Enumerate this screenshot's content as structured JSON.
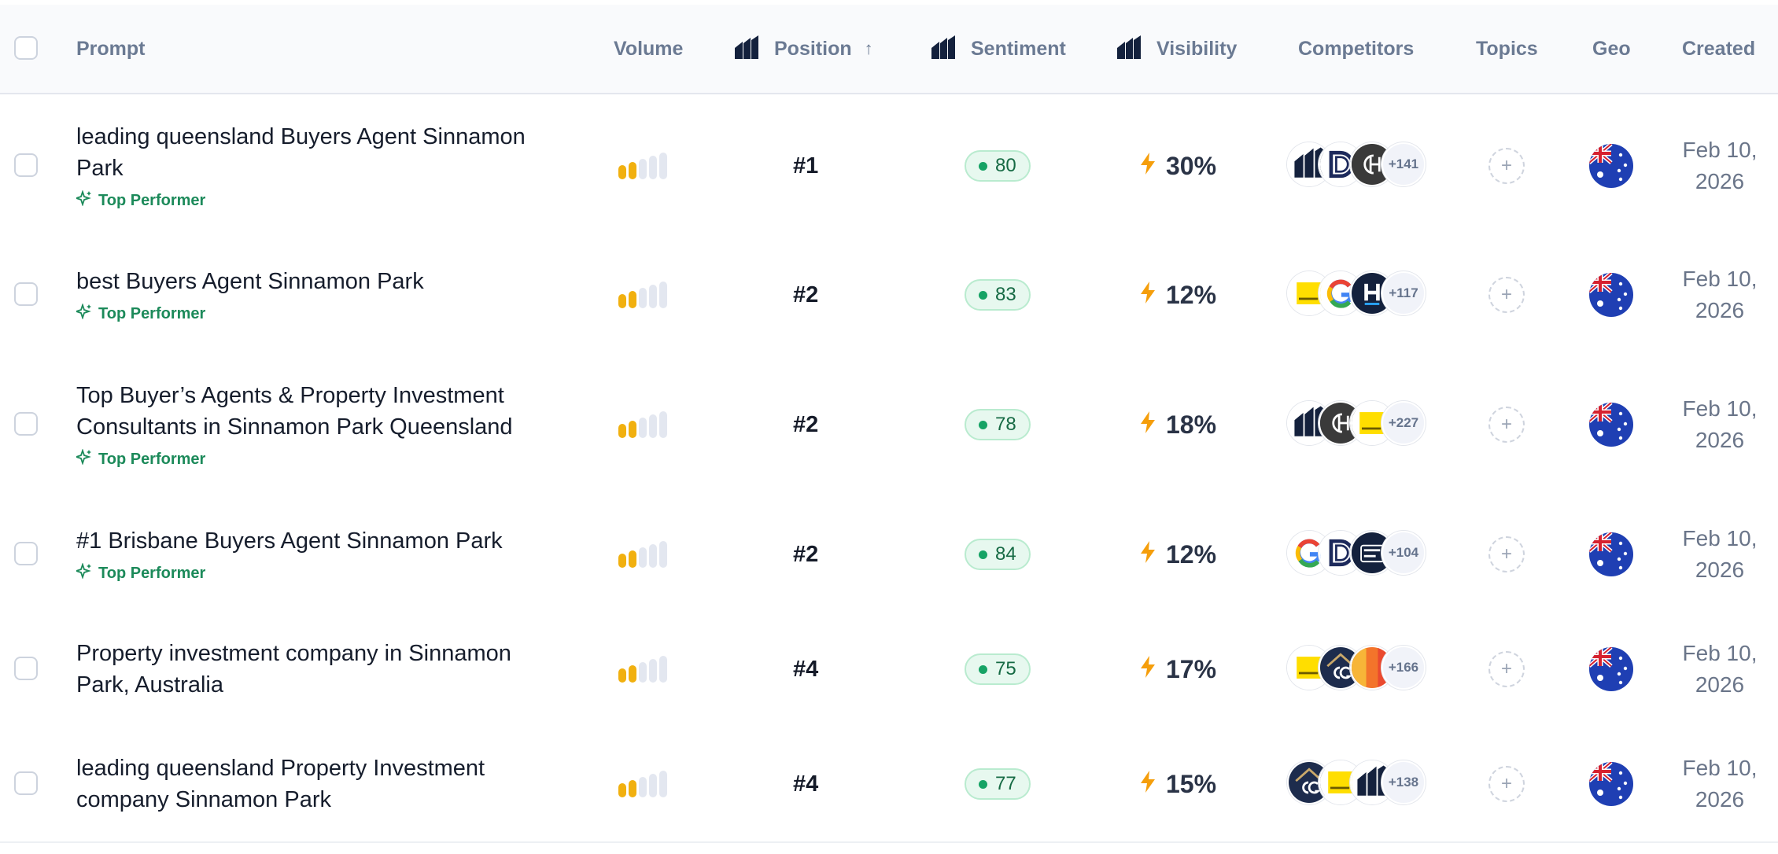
{
  "header": {
    "prompt": "Prompt",
    "volume": "Volume",
    "position": "Position",
    "sentiment": "Sentiment",
    "visibility": "Visibility",
    "competitors": "Competitors",
    "topics": "Topics",
    "geo": "Geo",
    "created": "Created"
  },
  "colors": {
    "volume_active": "#f1b00f",
    "volume_inactive": "#e3e7f0",
    "sentiment_green": "#16a365",
    "visibility_bolt": "#f59e0b",
    "top_performer": "#1c8a5a"
  },
  "icons": {
    "brand": "brand-logo-icon",
    "sort": "arrow-up-icon",
    "badge": "sparkle-icon",
    "visibility": "bolt-icon",
    "topic": "plus-icon",
    "geo": "australia-flag-icon"
  },
  "rows": [
    {
      "prompt_line1": "leading queensland Buyers Agent Sinnamon",
      "prompt_line2": "Park",
      "badge": "Top Performer",
      "volume_level": 2,
      "position": "#1",
      "sentiment": "80",
      "visibility": "30%",
      "competitors": [
        "logo-stripes",
        "logo-d",
        "logo-ch"
      ],
      "competitors_more": "+141",
      "created_line1": "Feb 10,",
      "created_line2": "2026"
    },
    {
      "prompt_line1": "best Buyers Agent Sinnamon Park",
      "prompt_line2": "",
      "badge": "Top Performer",
      "volume_level": 2,
      "position": "#2",
      "sentiment": "83",
      "visibility": "12%",
      "competitors": [
        "logo-yellow",
        "logo-google",
        "logo-h"
      ],
      "competitors_more": "+117",
      "created_line1": "Feb 10,",
      "created_line2": "2026"
    },
    {
      "prompt_line1": "Top Buyer’s Agents & Property Investment",
      "prompt_line2": "Consultants in Sinnamon Park Queensland",
      "badge": "Top Performer",
      "volume_level": 2,
      "position": "#2",
      "sentiment": "78",
      "visibility": "18%",
      "competitors": [
        "logo-stripes",
        "logo-ch",
        "logo-yellow"
      ],
      "competitors_more": "+227",
      "created_line1": "Feb 10,",
      "created_line2": "2026"
    },
    {
      "prompt_line1": "#1 Brisbane Buyers Agent Sinnamon Park",
      "prompt_line2": "",
      "badge": "Top Performer",
      "volume_level": 2,
      "position": "#2",
      "sentiment": "84",
      "visibility": "12%",
      "competitors": [
        "logo-google",
        "logo-d",
        "logo-ratemyagent"
      ],
      "competitors_more": "+104",
      "created_line1": "Feb 10,",
      "created_line2": "2026"
    },
    {
      "prompt_line1": "Property investment company in Sinnamon",
      "prompt_line2": "Park, Australia",
      "badge": "",
      "volume_level": 2,
      "position": "#4",
      "sentiment": "75",
      "visibility": "17%",
      "competitors": [
        "logo-yellow",
        "logo-cg",
        "logo-orange"
      ],
      "competitors_more": "+166",
      "created_line1": "Feb 10,",
      "created_line2": "2026"
    },
    {
      "prompt_line1": "leading queensland Property Investment",
      "prompt_line2": "company Sinnamon Park",
      "badge": "",
      "volume_level": 2,
      "position": "#4",
      "sentiment": "77",
      "visibility": "15%",
      "competitors": [
        "logo-cg",
        "logo-yellow",
        "logo-stripes"
      ],
      "competitors_more": "+138",
      "created_line1": "Feb 10,",
      "created_line2": "2026"
    }
  ]
}
